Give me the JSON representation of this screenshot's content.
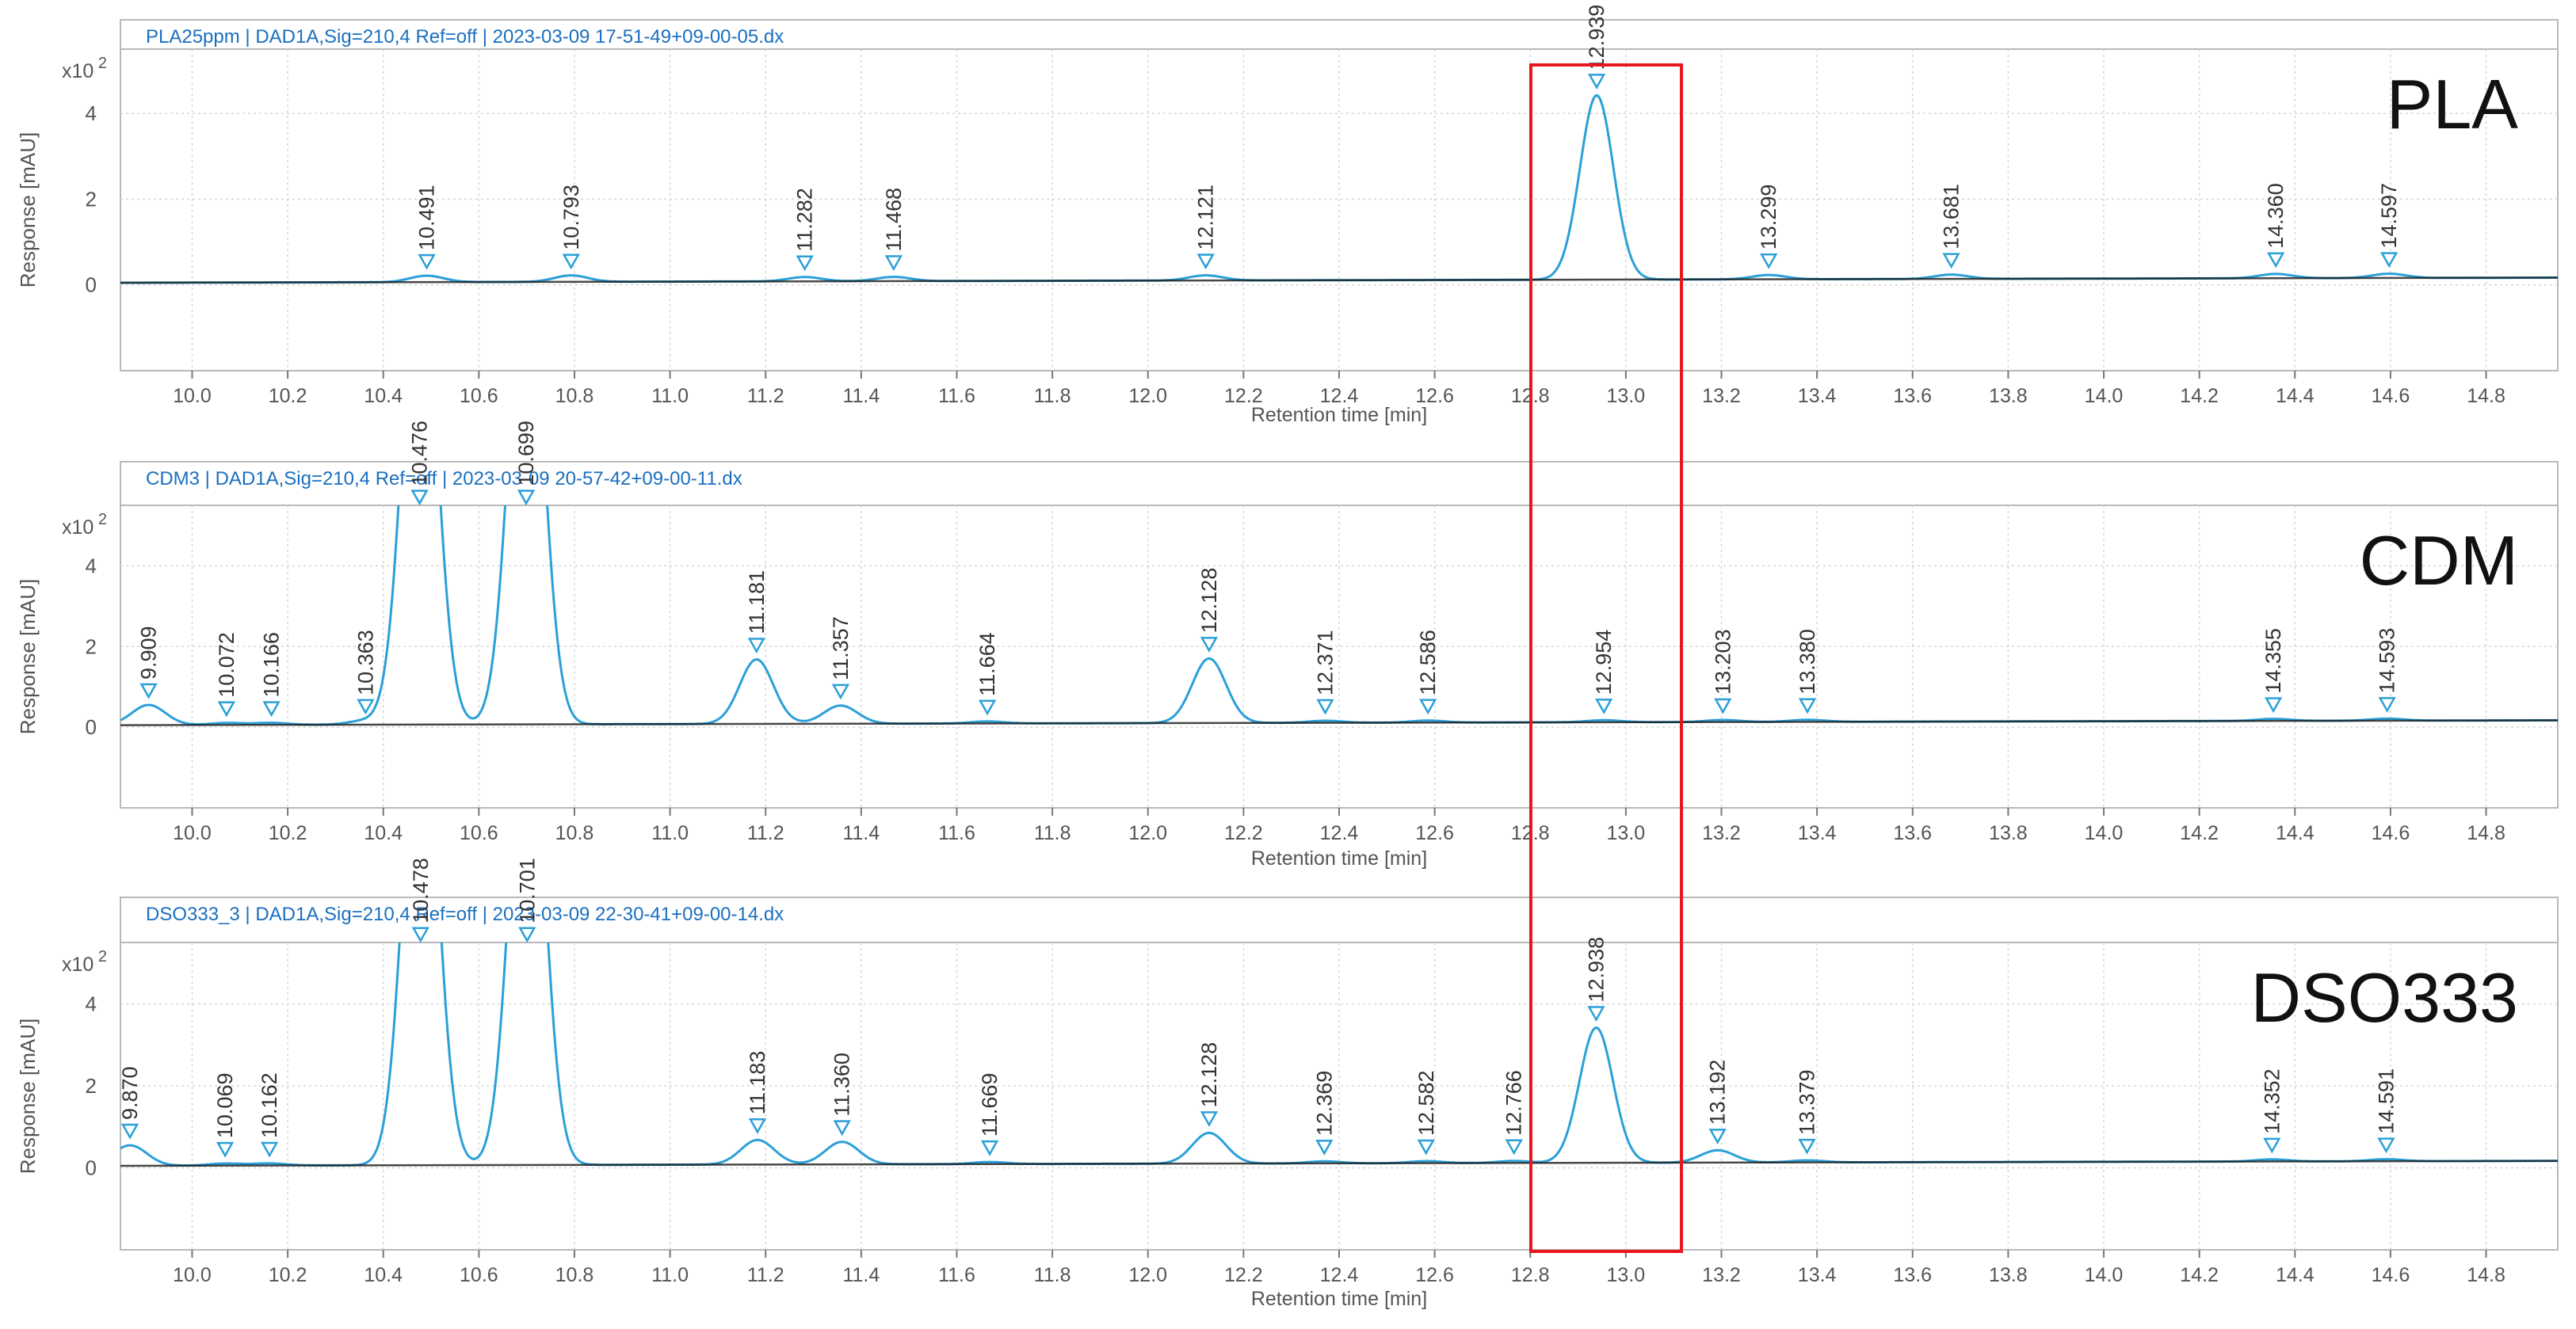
{
  "figure": {
    "highlight_color": "#e8161d",
    "line_color": "#2aa0d8",
    "baseline_color": "#1a1a1a",
    "header_text_color": "#1a6fbf",
    "axis_text_color": "#555555"
  },
  "chart_data": [
    {
      "type": "line",
      "header": "PLA25ppm | DAD1A,Sig=210,4 Ref=off | 2023-03-09 17-51-49+09-00-05.dx",
      "sample_label": "PLA",
      "xlabel": "Retention time [min]",
      "ylabel": "Response [mAU]",
      "y_multiplier": "x10 2",
      "xlim": [
        9.85,
        14.95
      ],
      "ylim": [
        -2,
        5.5
      ],
      "x_ticks": [
        "10.0",
        "10.2",
        "10.4",
        "10.6",
        "10.8",
        "11.0",
        "11.2",
        "11.4",
        "11.6",
        "11.8",
        "12.0",
        "12.2",
        "12.4",
        "12.6",
        "12.8",
        "13.0",
        "13.2",
        "13.4",
        "13.6",
        "13.8",
        "14.0",
        "14.2",
        "14.4",
        "14.6",
        "14.8"
      ],
      "y_ticks": [
        "0",
        "2",
        "4"
      ],
      "grid": true,
      "peaks": [
        {
          "rt": 10.491,
          "label": "10.491",
          "height": 0.15
        },
        {
          "rt": 10.793,
          "label": "10.793",
          "height": 0.15
        },
        {
          "rt": 11.282,
          "label": "11.282",
          "height": 0.1
        },
        {
          "rt": 11.468,
          "label": "11.468",
          "height": 0.1
        },
        {
          "rt": 12.121,
          "label": "12.121",
          "height": 0.12
        },
        {
          "rt": 12.939,
          "label": "12.939",
          "height": 4.3
        },
        {
          "rt": 13.299,
          "label": "13.299",
          "height": 0.1
        },
        {
          "rt": 13.681,
          "label": "13.681",
          "height": 0.1
        },
        {
          "rt": 14.36,
          "label": "14.360",
          "height": 0.1
        },
        {
          "rt": 14.597,
          "label": "14.597",
          "height": 0.1
        }
      ]
    },
    {
      "type": "line",
      "header": "CDM3 | DAD1A,Sig=210,4 Ref=off | 2023-03-09 20-57-42+09-00-11.dx",
      "sample_label": "CDM",
      "xlabel": "Retention time [min]",
      "ylabel": "Response [mAU]",
      "y_multiplier": "x10 2",
      "xlim": [
        9.85,
        14.95
      ],
      "ylim": [
        -2,
        5.5
      ],
      "x_ticks": [
        "10.0",
        "10.2",
        "10.4",
        "10.6",
        "10.8",
        "11.0",
        "11.2",
        "11.4",
        "11.6",
        "11.8",
        "12.0",
        "12.2",
        "12.4",
        "12.6",
        "12.8",
        "13.0",
        "13.2",
        "13.4",
        "13.6",
        "13.8",
        "14.0",
        "14.2",
        "14.4",
        "14.6",
        "14.8"
      ],
      "y_ticks": [
        "0",
        "2",
        "4"
      ],
      "grid": true,
      "peaks": [
        {
          "rt": 9.909,
          "label": "9.909",
          "height": 0.5
        },
        {
          "rt": 10.072,
          "label": "10.072",
          "height": 0.05
        },
        {
          "rt": 10.166,
          "label": "10.166",
          "height": 0.05
        },
        {
          "rt": 10.363,
          "label": "10.363",
          "height": 0.1
        },
        {
          "rt": 10.476,
          "label": "10.476",
          "height": 12
        },
        {
          "rt": 10.699,
          "label": "10.699",
          "height": 12
        },
        {
          "rt": 11.181,
          "label": "11.181",
          "height": 1.6
        },
        {
          "rt": 11.357,
          "label": "11.357",
          "height": 0.45
        },
        {
          "rt": 11.664,
          "label": "11.664",
          "height": 0.05
        },
        {
          "rt": 12.128,
          "label": "12.128",
          "height": 1.6
        },
        {
          "rt": 12.371,
          "label": "12.371",
          "height": 0.05
        },
        {
          "rt": 12.586,
          "label": "12.586",
          "height": 0.05
        },
        {
          "rt": 12.954,
          "label": "12.954",
          "height": 0.05
        },
        {
          "rt": 13.203,
          "label": "13.203",
          "height": 0.05
        },
        {
          "rt": 13.38,
          "label": "13.380",
          "height": 0.05
        },
        {
          "rt": 14.355,
          "label": "14.355",
          "height": 0.05
        },
        {
          "rt": 14.593,
          "label": "14.593",
          "height": 0.05
        }
      ]
    },
    {
      "type": "line",
      "header": "DSO333_3 | DAD1A,Sig=210,4 Ref=off | 2023-03-09 22-30-41+09-00-14.dx",
      "sample_label": "DSO333",
      "xlabel": "Retention time [min]",
      "ylabel": "Response [mAU]",
      "y_multiplier": "x10 2",
      "xlim": [
        9.85,
        14.95
      ],
      "ylim": [
        -2,
        5.5
      ],
      "x_ticks": [
        "10.0",
        "10.2",
        "10.4",
        "10.6",
        "10.8",
        "11.0",
        "11.2",
        "11.4",
        "11.6",
        "11.8",
        "12.0",
        "12.2",
        "12.4",
        "12.6",
        "12.8",
        "13.0",
        "13.2",
        "13.4",
        "13.6",
        "13.8",
        "14.0",
        "14.2",
        "14.4",
        "14.6",
        "14.8"
      ],
      "y_ticks": [
        "0",
        "2",
        "4"
      ],
      "grid": true,
      "peaks": [
        {
          "rt": 9.87,
          "label": "9.870",
          "height": 0.5
        },
        {
          "rt": 10.069,
          "label": "10.069",
          "height": 0.05
        },
        {
          "rt": 10.162,
          "label": "10.162",
          "height": 0.05
        },
        {
          "rt": 10.478,
          "label": "10.478",
          "height": 12
        },
        {
          "rt": 10.701,
          "label": "10.701",
          "height": 12
        },
        {
          "rt": 11.183,
          "label": "11.183",
          "height": 0.6
        },
        {
          "rt": 11.36,
          "label": "11.360",
          "height": 0.55
        },
        {
          "rt": 11.669,
          "label": "11.669",
          "height": 0.05
        },
        {
          "rt": 12.128,
          "label": "12.128",
          "height": 0.75
        },
        {
          "rt": 12.369,
          "label": "12.369",
          "height": 0.05
        },
        {
          "rt": 12.582,
          "label": "12.582",
          "height": 0.05
        },
        {
          "rt": 12.766,
          "label": "12.766",
          "height": 0.05
        },
        {
          "rt": 12.938,
          "label": "12.938",
          "height": 3.3
        },
        {
          "rt": 13.192,
          "label": "13.192",
          "height": 0.3
        },
        {
          "rt": 13.379,
          "label": "13.379",
          "height": 0.05
        },
        {
          "rt": 14.352,
          "label": "14.352",
          "height": 0.05
        },
        {
          "rt": 14.591,
          "label": "14.591",
          "height": 0.05
        }
      ]
    }
  ]
}
